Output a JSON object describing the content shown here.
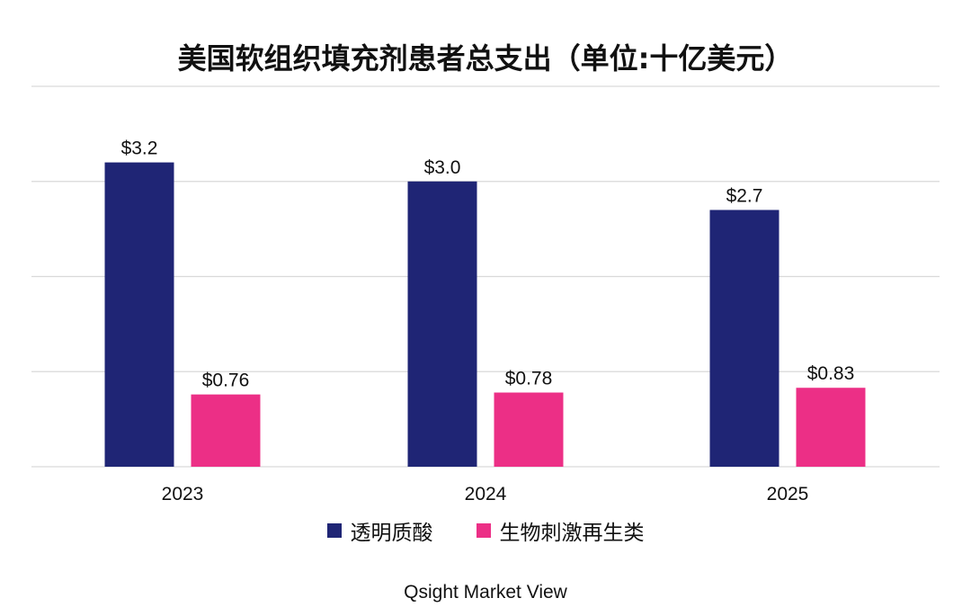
{
  "chart_data": {
    "type": "bar",
    "title": "美国软组织填充剂患者总支出（单位:十亿美元）",
    "categories": [
      "2023",
      "2024",
      "2025"
    ],
    "series": [
      {
        "name": "透明质酸",
        "values": [
          3.2,
          3.0,
          2.7
        ],
        "labels": [
          "$3.2",
          "$3.0",
          "$2.7"
        ],
        "color": "#1f2575"
      },
      {
        "name": "生物刺激再生类",
        "values": [
          0.76,
          0.78,
          0.83
        ],
        "labels": [
          "$0.76",
          "$0.78",
          "$0.83"
        ],
        "color": "#ec2f86"
      }
    ],
    "ylim": [
      0,
      4
    ],
    "grid": true,
    "legend": "bottom-center"
  },
  "source": "Qsight Market View"
}
